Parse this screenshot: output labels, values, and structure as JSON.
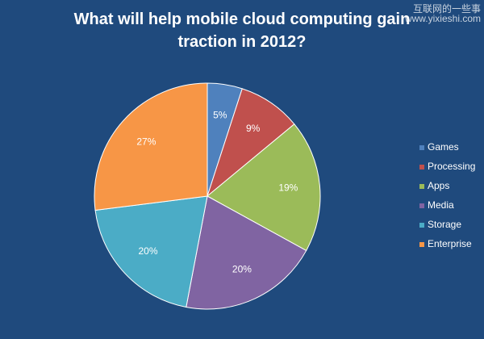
{
  "chart_data": {
    "type": "pie",
    "title": "What will help mobile cloud computing gain traction in 2012?",
    "categories": [
      "Games",
      "Processing",
      "Apps",
      "Media",
      "Storage",
      "Enterprise"
    ],
    "values": [
      5,
      9,
      19,
      20,
      20,
      27
    ],
    "value_labels": [
      "5%",
      "9%",
      "19%",
      "20%",
      "20%",
      "27%"
    ],
    "colors": [
      "#4f81bd",
      "#c0504d",
      "#9bbb59",
      "#8064a2",
      "#4bacc6",
      "#f79646"
    ],
    "legend": "right"
  },
  "watermark": {
    "line1": "互联网的一些事",
    "line2": "www.yixieshi.com"
  }
}
